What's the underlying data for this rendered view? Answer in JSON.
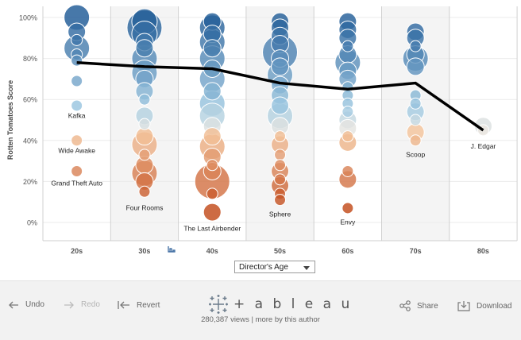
{
  "chart_data": {
    "type": "scatter",
    "ylabel": "Rotten Tomatoes Score",
    "y_ticks": [
      "100%",
      "80%",
      "60%",
      "40%",
      "20%",
      "0%"
    ],
    "ylim": [
      0,
      100
    ],
    "categories": [
      "20s",
      "30s",
      "40s",
      "50s",
      "60s",
      "70s",
      "80s"
    ],
    "trend_line": [
      78,
      76,
      75,
      68,
      65,
      68,
      45
    ],
    "colors": {
      "high": "#1f5a96",
      "mid": "#9ec9e2",
      "low": "#c24a1a",
      "panel_shade": "#f4f4f4",
      "trend": "#000000"
    },
    "bubbles": [
      {
        "col": 0,
        "y": 100,
        "s": 3
      },
      {
        "col": 0,
        "y": 93,
        "s": 2
      },
      {
        "col": 0,
        "y": 89,
        "s": 1
      },
      {
        "col": 0,
        "y": 85,
        "s": 3
      },
      {
        "col": 0,
        "y": 82,
        "s": 1
      },
      {
        "col": 0,
        "y": 79,
        "s": 1
      },
      {
        "col": 0,
        "y": 69,
        "s": 1
      },
      {
        "col": 0,
        "y": 57,
        "s": 1
      },
      {
        "col": 0,
        "y": 40,
        "s": 1
      },
      {
        "col": 0,
        "y": 25,
        "s": 1
      },
      {
        "col": 1,
        "y": 98,
        "s": 3
      },
      {
        "col": 1,
        "y": 95,
        "s": 4
      },
      {
        "col": 1,
        "y": 92,
        "s": 3
      },
      {
        "col": 1,
        "y": 88,
        "s": 2
      },
      {
        "col": 1,
        "y": 85,
        "s": 2
      },
      {
        "col": 1,
        "y": 80,
        "s": 3
      },
      {
        "col": 1,
        "y": 73,
        "s": 3
      },
      {
        "col": 1,
        "y": 70,
        "s": 2
      },
      {
        "col": 1,
        "y": 64,
        "s": 2
      },
      {
        "col": 1,
        "y": 60,
        "s": 1
      },
      {
        "col": 1,
        "y": 52,
        "s": 2
      },
      {
        "col": 1,
        "y": 48,
        "s": 1
      },
      {
        "col": 1,
        "y": 42,
        "s": 2
      },
      {
        "col": 1,
        "y": 38,
        "s": 3
      },
      {
        "col": 1,
        "y": 33,
        "s": 1
      },
      {
        "col": 1,
        "y": 28,
        "s": 2
      },
      {
        "col": 1,
        "y": 24,
        "s": 3
      },
      {
        "col": 1,
        "y": 20,
        "s": 2
      },
      {
        "col": 1,
        "y": 15,
        "s": 1
      },
      {
        "col": 2,
        "y": 98,
        "s": 2
      },
      {
        "col": 2,
        "y": 95,
        "s": 3
      },
      {
        "col": 2,
        "y": 92,
        "s": 2
      },
      {
        "col": 2,
        "y": 88,
        "s": 3
      },
      {
        "col": 2,
        "y": 85,
        "s": 2
      },
      {
        "col": 2,
        "y": 80,
        "s": 3
      },
      {
        "col": 2,
        "y": 75,
        "s": 2
      },
      {
        "col": 2,
        "y": 70,
        "s": 3
      },
      {
        "col": 2,
        "y": 64,
        "s": 2
      },
      {
        "col": 2,
        "y": 58,
        "s": 3
      },
      {
        "col": 2,
        "y": 52,
        "s": 3
      },
      {
        "col": 2,
        "y": 47,
        "s": 2
      },
      {
        "col": 2,
        "y": 42,
        "s": 2
      },
      {
        "col": 2,
        "y": 37,
        "s": 3
      },
      {
        "col": 2,
        "y": 32,
        "s": 2
      },
      {
        "col": 2,
        "y": 28,
        "s": 1
      },
      {
        "col": 2,
        "y": 25,
        "s": 2
      },
      {
        "col": 2,
        "y": 20,
        "s": 4
      },
      {
        "col": 2,
        "y": 14,
        "s": 1
      },
      {
        "col": 2,
        "y": 5,
        "s": 2
      },
      {
        "col": 3,
        "y": 98,
        "s": 2
      },
      {
        "col": 3,
        "y": 95,
        "s": 2
      },
      {
        "col": 3,
        "y": 91,
        "s": 2
      },
      {
        "col": 3,
        "y": 87,
        "s": 2
      },
      {
        "col": 3,
        "y": 83,
        "s": 4
      },
      {
        "col": 3,
        "y": 80,
        "s": 2
      },
      {
        "col": 3,
        "y": 76,
        "s": 2
      },
      {
        "col": 3,
        "y": 72,
        "s": 3
      },
      {
        "col": 3,
        "y": 67,
        "s": 2
      },
      {
        "col": 3,
        "y": 62,
        "s": 2
      },
      {
        "col": 3,
        "y": 57,
        "s": 2
      },
      {
        "col": 3,
        "y": 52,
        "s": 3
      },
      {
        "col": 3,
        "y": 47,
        "s": 2
      },
      {
        "col": 3,
        "y": 42,
        "s": 1
      },
      {
        "col": 3,
        "y": 38,
        "s": 2
      },
      {
        "col": 3,
        "y": 33,
        "s": 1
      },
      {
        "col": 3,
        "y": 28,
        "s": 1
      },
      {
        "col": 3,
        "y": 25,
        "s": 2
      },
      {
        "col": 3,
        "y": 21,
        "s": 1
      },
      {
        "col": 3,
        "y": 18,
        "s": 2
      },
      {
        "col": 3,
        "y": 14,
        "s": 1
      },
      {
        "col": 3,
        "y": 11,
        "s": 1
      },
      {
        "col": 4,
        "y": 98,
        "s": 2
      },
      {
        "col": 4,
        "y": 94,
        "s": 2
      },
      {
        "col": 4,
        "y": 90,
        "s": 2
      },
      {
        "col": 4,
        "y": 86,
        "s": 1
      },
      {
        "col": 4,
        "y": 82,
        "s": 2
      },
      {
        "col": 4,
        "y": 78,
        "s": 3
      },
      {
        "col": 4,
        "y": 74,
        "s": 2
      },
      {
        "col": 4,
        "y": 70,
        "s": 2
      },
      {
        "col": 4,
        "y": 66,
        "s": 1
      },
      {
        "col": 4,
        "y": 62,
        "s": 1
      },
      {
        "col": 4,
        "y": 58,
        "s": 1
      },
      {
        "col": 4,
        "y": 54,
        "s": 1
      },
      {
        "col": 4,
        "y": 50,
        "s": 2
      },
      {
        "col": 4,
        "y": 46,
        "s": 2
      },
      {
        "col": 4,
        "y": 42,
        "s": 1
      },
      {
        "col": 4,
        "y": 39,
        "s": 2
      },
      {
        "col": 4,
        "y": 25,
        "s": 1
      },
      {
        "col": 4,
        "y": 21,
        "s": 2
      },
      {
        "col": 4,
        "y": 7,
        "s": 1
      },
      {
        "col": 5,
        "y": 93,
        "s": 2
      },
      {
        "col": 5,
        "y": 90,
        "s": 2
      },
      {
        "col": 5,
        "y": 86,
        "s": 1
      },
      {
        "col": 5,
        "y": 82,
        "s": 2
      },
      {
        "col": 5,
        "y": 80,
        "s": 3
      },
      {
        "col": 5,
        "y": 76,
        "s": 2
      },
      {
        "col": 5,
        "y": 62,
        "s": 1
      },
      {
        "col": 5,
        "y": 58,
        "s": 1
      },
      {
        "col": 5,
        "y": 54,
        "s": 2
      },
      {
        "col": 5,
        "y": 50,
        "s": 1
      },
      {
        "col": 5,
        "y": 44,
        "s": 2
      },
      {
        "col": 5,
        "y": 40,
        "s": 1
      },
      {
        "col": 6,
        "y": 47,
        "s": 2
      },
      {
        "col": 6,
        "y": 45,
        "s": 1
      }
    ],
    "annotations": [
      {
        "label": "Kafka",
        "col": 0,
        "y": 51
      },
      {
        "label": "Wide Awake",
        "col": 0,
        "y": 34
      },
      {
        "label": "Grand Theft Auto",
        "col": 0,
        "y": 18
      },
      {
        "label": "Four Rooms",
        "col": 1,
        "y": 6
      },
      {
        "label": "The Last Airbender",
        "col": 2,
        "y": -4
      },
      {
        "label": "Sphere",
        "col": 3,
        "y": 3
      },
      {
        "label": "Envy",
        "col": 4,
        "y": -1
      },
      {
        "label": "Scoop",
        "col": 5,
        "y": 32
      },
      {
        "label": "J. Edgar",
        "col": 6,
        "y": 36
      }
    ]
  },
  "controls": {
    "dropdown_label": "Director's Age"
  },
  "toolbar": {
    "undo": "Undo",
    "redo": "Redo",
    "revert": "Revert",
    "brand": "+ a b l e a u",
    "views": "280,387 views | more by this author",
    "share": "Share",
    "download": "Download"
  }
}
